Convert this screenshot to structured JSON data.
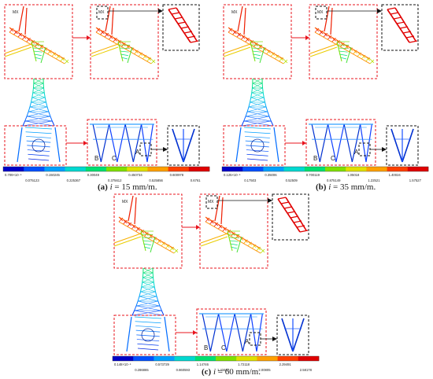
{
  "panels": [
    {
      "id": "a",
      "caption_letter": "(a)",
      "caption_var": "i",
      "caption_rest": " = 15 mm/m.",
      "mx_label": "MX",
      "labels": [
        "B",
        "C",
        "A"
      ],
      "scale_row1": [
        "0.709×10⁻⁵",
        "0.150245",
        "0.30049",
        "0.450734",
        "0.600978"
      ],
      "scale_row2": [
        "0.075123",
        "0.225367",
        "0.375612",
        "0.525856",
        "0.6761"
      ]
    },
    {
      "id": "b",
      "caption_letter": "(b)",
      "caption_var": "i",
      "caption_rest": " = 35 mm/m.",
      "mx_label": "MX",
      "labels": [
        "B",
        "C",
        "A"
      ],
      "scale_row1": [
        "0.125×10⁻⁵",
        "0.35006",
        "0.700119",
        "1.05018",
        "1.40024"
      ],
      "scale_row2": [
        "0.17503",
        "0.52509",
        "0.875149",
        "1.22521",
        "1.57527"
      ]
    },
    {
      "id": "c",
      "caption_letter": "(c)",
      "caption_var": "i",
      "caption_rest": " = 60 mm/m.",
      "mx_label": "MX",
      "labels": [
        "B",
        "C",
        "A"
      ],
      "scale_row1": [
        "0.148×10⁻⁵",
        "0.573729",
        "1.14746",
        "1.72118",
        "2.29491"
      ],
      "scale_row2": [
        "0.286865",
        "0.860593",
        "1.43432",
        "2.00805",
        "2.58178"
      ]
    }
  ],
  "colors": {
    "colorbar": [
      "#0000c8",
      "#0050ff",
      "#00a0ff",
      "#00d8d0",
      "#00e070",
      "#80e000",
      "#e0e000",
      "#ffa000",
      "#ff4000",
      "#e00000"
    ],
    "dash_red": "#e8141e",
    "dash_black": "#111111"
  }
}
